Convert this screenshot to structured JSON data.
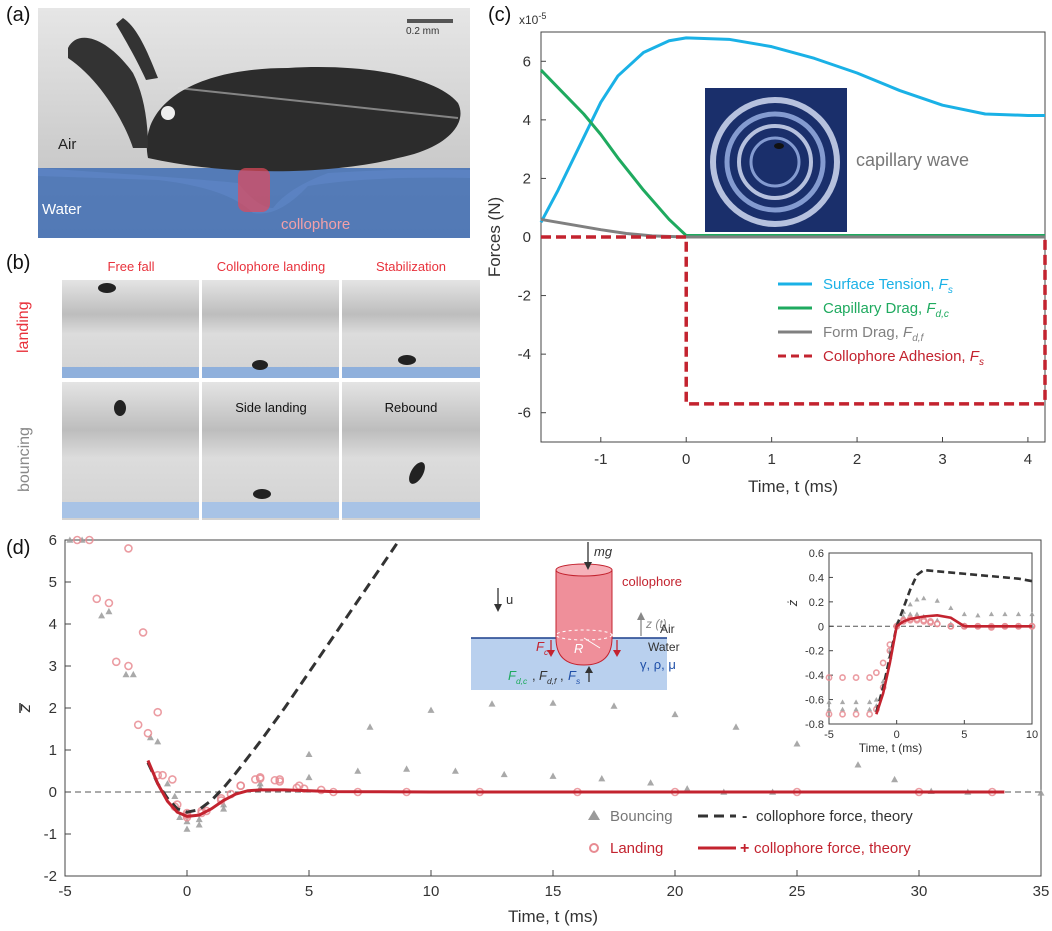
{
  "panel_labels": {
    "a": "(a)",
    "b": "(b)",
    "c": "(c)",
    "d": "(d)"
  },
  "panel_a": {
    "scale_bar": "0.2 mm",
    "air": "Air",
    "water": "Water",
    "collophore": "collophore"
  },
  "panel_b": {
    "top_captions": [
      "Free fall",
      "Collophore landing",
      "Stabilization"
    ],
    "bottom_captions": [
      "",
      "Side landing",
      "Rebound"
    ],
    "row_landing": "landing",
    "row_bouncing": "bouncing"
  },
  "colors": {
    "surface_tension": "#1ab1e6",
    "capillary_drag": "#1faa5f",
    "form_drag": "#808080",
    "adhesion": "#c3232f",
    "bouncing": "#9a9a9a",
    "landing": "#e88b92",
    "theory_dark": "#333333",
    "theory_red": "#c3232f"
  },
  "chart_data": [
    {
      "type": "line",
      "panel": "(c)",
      "multiplier_label": "x10",
      "multiplier_exp": "-5",
      "xlabel": "Time, t (ms)",
      "ylabel": "Forces (N)",
      "xlim": [
        -1.7,
        4.2
      ],
      "ylim": [
        -7,
        7
      ],
      "xticks": [
        -1,
        0,
        1,
        2,
        3,
        4
      ],
      "yticks": [
        -6,
        -4,
        -2,
        0,
        2,
        4,
        6
      ],
      "annotation": "capillary wave",
      "legend_position": "bottom-right",
      "series": [
        {
          "name": "Surface Tension, ",
          "italic": "F",
          "sub": "s",
          "style": "solid",
          "x": [
            -1.7,
            -1.5,
            -1.2,
            -1.0,
            -0.8,
            -0.5,
            -0.2,
            0.0,
            0.5,
            1.0,
            1.5,
            2.0,
            2.5,
            3.0,
            3.5,
            4.0,
            4.2
          ],
          "y": [
            0.5,
            1.6,
            3.4,
            4.6,
            5.5,
            6.3,
            6.7,
            6.8,
            6.75,
            6.5,
            6.1,
            5.6,
            5.0,
            4.5,
            4.2,
            4.15,
            4.15
          ]
        },
        {
          "name": "Capillary Drag, ",
          "italic": "F",
          "sub": "d,c",
          "style": "solid",
          "x": [
            -1.7,
            -1.5,
            -1.2,
            -1.0,
            -0.8,
            -0.5,
            -0.2,
            0.0,
            4.2
          ],
          "y": [
            5.7,
            5.1,
            4.2,
            3.5,
            2.7,
            1.6,
            0.6,
            0.05,
            0.05
          ]
        },
        {
          "name": "Form Drag, ",
          "italic": "F",
          "sub": "d,f",
          "style": "solid",
          "x": [
            -1.7,
            -1.4,
            -1.0,
            -0.7,
            -0.4,
            0.0,
            4.2
          ],
          "y": [
            0.6,
            0.45,
            0.25,
            0.12,
            0.04,
            0.0,
            0.0
          ]
        },
        {
          "name": "Collophore Adhesion, ",
          "italic": "F",
          "sub": "s",
          "style": "dashed",
          "x": [
            -1.7,
            0.0,
            0.0,
            4.2,
            4.2
          ],
          "y": [
            0.0,
            0.0,
            -5.7,
            -5.7,
            0.0
          ]
        }
      ]
    },
    {
      "type": "scatter",
      "panel": "(d)",
      "xlabel": "Time, t (ms)",
      "ylabel": "z",
      "ylabel_bar": true,
      "xlim": [
        -5,
        35
      ],
      "ylim": [
        -2,
        6
      ],
      "xticks": [
        -5,
        0,
        5,
        10,
        15,
        20,
        25,
        30,
        35
      ],
      "yticks": [
        -2,
        -1,
        0,
        1,
        2,
        3,
        4,
        5,
        6
      ],
      "legend_position": "bottom-center",
      "legend": [
        {
          "label": "Bouncing",
          "marker": "triangle"
        },
        {
          "label": "collophore force, theory",
          "sign": "-",
          "style": "dashed"
        },
        {
          "label": "Landing",
          "marker": "circle"
        },
        {
          "label": "collophore force, theory",
          "sign": "+",
          "style": "solid"
        }
      ],
      "series": [
        {
          "group": "Bouncing",
          "marker": "triangle",
          "x": [
            -4.8,
            -3.5,
            -2.5,
            -1.5,
            -0.8,
            -0.3,
            0.0,
            0.5,
            1.5,
            3,
            5,
            7.5,
            10,
            12.5,
            15,
            17.5,
            20,
            22.5,
            25,
            27.5,
            29,
            30.5,
            32,
            35
          ],
          "y": [
            6.0,
            4.2,
            2.8,
            1.3,
            0.2,
            -0.6,
            -0.88,
            -0.78,
            -0.4,
            0.2,
            0.9,
            1.55,
            1.95,
            2.1,
            2.12,
            2.05,
            1.85,
            1.55,
            1.15,
            0.65,
            0.3,
            0.02,
            0.0,
            -0.02
          ]
        },
        {
          "group": "Bouncing",
          "marker": "triangle",
          "x": [
            -4.3,
            -3.2,
            -2.2,
            -1.2,
            -0.5,
            0.0,
            0.5,
            1.5,
            3,
            5,
            7,
            9,
            11,
            13,
            15,
            17,
            19,
            20.5,
            22,
            24
          ],
          "y": [
            6.0,
            4.3,
            2.8,
            1.2,
            -0.1,
            -0.7,
            -0.65,
            -0.3,
            0.1,
            0.35,
            0.5,
            0.55,
            0.5,
            0.42,
            0.38,
            0.32,
            0.22,
            0.08,
            0.0,
            0.0
          ]
        },
        {
          "group": "Landing",
          "marker": "circle",
          "x": [
            -4.0,
            -3.2,
            -2.4,
            -1.6,
            -1.0,
            -0.4,
            0.0,
            0.6,
            1.4,
            2.2,
            3.0,
            3.8,
            4.6,
            5.5,
            7,
            9,
            12,
            16,
            20,
            25,
            30,
            33
          ],
          "y": [
            6.0,
            4.5,
            3.0,
            1.4,
            0.4,
            -0.3,
            -0.55,
            -0.45,
            -0.15,
            0.15,
            0.35,
            0.3,
            0.15,
            0.05,
            0.0,
            0.0,
            0.0,
            0.0,
            0.0,
            0.0,
            0.0,
            0.0
          ]
        },
        {
          "group": "Landing",
          "marker": "circle",
          "x": [
            -2.4,
            -1.8,
            -1.2,
            -0.6,
            0.0,
            0.6,
            1.4,
            2.2,
            3.0,
            3.8,
            4.8,
            6
          ],
          "y": [
            5.8,
            3.8,
            1.9,
            0.3,
            -0.5,
            -0.5,
            -0.2,
            0.15,
            0.32,
            0.25,
            0.08,
            0.0
          ]
        },
        {
          "group": "Landing",
          "marker": "circle",
          "x": [
            -4.5,
            -3.7,
            -2.9,
            -2.0,
            -1.2,
            -0.5,
            0.0,
            0.8,
            1.8,
            2.8,
            3.6,
            4.5
          ],
          "y": [
            6.0,
            4.6,
            3.1,
            1.6,
            0.4,
            -0.35,
            -0.6,
            -0.45,
            -0.05,
            0.3,
            0.28,
            0.1
          ]
        },
        {
          "group": "collophore force, theory",
          "sign": "-",
          "style": "dashed",
          "x": [
            -1.6,
            -1.2,
            -0.8,
            -0.4,
            0.0,
            0.5,
            1.0,
            1.5,
            2.0,
            3.0,
            4.0,
            5.0,
            6.0,
            7.0,
            8.0,
            8.7
          ],
          "y": [
            0.7,
            0.2,
            -0.15,
            -0.4,
            -0.48,
            -0.42,
            -0.2,
            0.1,
            0.45,
            1.2,
            2.0,
            2.85,
            3.7,
            4.55,
            5.4,
            6.0
          ]
        },
        {
          "group": "collophore force, theory",
          "sign": "+",
          "style": "solid",
          "x": [
            -1.6,
            -1.2,
            -0.8,
            -0.4,
            0.0,
            0.5,
            1.0,
            1.5,
            2.0,
            2.5,
            3.0,
            4.0,
            5.0,
            6.0,
            10.0,
            20.0,
            30.0,
            33.5
          ],
          "y": [
            0.75,
            0.2,
            -0.22,
            -0.48,
            -0.58,
            -0.55,
            -0.4,
            -0.2,
            -0.05,
            0.03,
            0.05,
            0.05,
            0.03,
            0.01,
            0.0,
            0.0,
            0.0,
            0.0
          ]
        }
      ],
      "inset_diagram": {
        "labels": [
          "mg",
          "collophore",
          "u",
          "z (t)",
          "Air",
          "Water",
          "R",
          "γ, ρ, μ"
        ],
        "force_F": "F",
        "sub_c": "c",
        "sub_dc": "d,c",
        "sub_df": "d,f",
        "sub_s": "s",
        "comma": ","
      },
      "inset": {
        "type": "scatter",
        "xlabel": "Time, t (ms)",
        "ylabel": "ż",
        "xlim": [
          -5,
          10
        ],
        "ylim": [
          -0.8,
          0.6
        ],
        "xticks": [
          -5,
          0,
          5,
          10
        ],
        "yticks": [
          -0.8,
          -0.6,
          -0.4,
          -0.2,
          0,
          0.2,
          0.4,
          0.6
        ],
        "series": [
          {
            "group": "Bouncing",
            "marker": "triangle",
            "x": [
              -5,
              -4,
              -3,
              -2,
              -1.5,
              -1,
              -0.5,
              0,
              0.5,
              1,
              1.5,
              2,
              3,
              4,
              5,
              6,
              7,
              8,
              9,
              10
            ],
            "y": [
              -0.62,
              -0.62,
              -0.62,
              -0.62,
              -0.6,
              -0.45,
              -0.2,
              0.02,
              0.12,
              0.18,
              0.22,
              0.23,
              0.21,
              0.15,
              0.1,
              0.09,
              0.1,
              0.1,
              0.1,
              0.1
            ]
          },
          {
            "group": "Bouncing",
            "marker": "triangle",
            "x": [
              -5,
              -4,
              -3,
              -2,
              -1.5,
              -1,
              -0.5,
              0,
              0.5,
              1,
              1.5,
              2,
              3,
              4,
              5,
              6,
              7,
              8,
              9,
              10
            ],
            "y": [
              -0.68,
              -0.68,
              -0.68,
              -0.68,
              -0.65,
              -0.5,
              -0.25,
              0.0,
              0.08,
              0.1,
              0.1,
              0.08,
              0.05,
              0.02,
              0.01,
              0.0,
              0.0,
              0.0,
              0.0,
              0.0
            ]
          },
          {
            "group": "Landing",
            "marker": "circle",
            "x": [
              -5,
              -4,
              -3,
              -2,
              -1.5,
              -1,
              -0.5,
              0,
              0.5,
              1,
              1.5,
              2,
              2.5,
              3,
              4,
              5,
              6,
              7,
              8,
              9,
              10
            ],
            "y": [
              -0.42,
              -0.42,
              -0.42,
              -0.42,
              -0.38,
              -0.3,
              -0.15,
              0.0,
              0.05,
              0.06,
              0.05,
              0.04,
              0.03,
              0.02,
              0.0,
              0.0,
              0.0,
              -0.01,
              0.0,
              0.0,
              0.0
            ]
          },
          {
            "group": "Landing",
            "marker": "circle",
            "x": [
              -5,
              -4,
              -3,
              -2,
              -1.5,
              -1,
              -0.5,
              0,
              0.5,
              1,
              1.5,
              2,
              2.5,
              3,
              4,
              5,
              6,
              7,
              8,
              9,
              10
            ],
            "y": [
              -0.72,
              -0.72,
              -0.72,
              -0.72,
              -0.68,
              -0.5,
              -0.2,
              0.0,
              0.04,
              0.05,
              0.06,
              0.05,
              0.04,
              0.02,
              0.0,
              0.0,
              0.0,
              0.0,
              0.0,
              0.0,
              0.0
            ]
          },
          {
            "group": "collophore force, theory",
            "sign": "-",
            "style": "dashed",
            "x": [
              -1.5,
              -1,
              -0.5,
              0,
              0.5,
              1,
              1.5,
              2,
              3,
              4,
              5,
              6,
              7,
              8,
              9,
              10
            ],
            "y": [
              -0.7,
              -0.5,
              -0.25,
              0.0,
              0.15,
              0.3,
              0.42,
              0.46,
              0.45,
              0.44,
              0.43,
              0.42,
              0.41,
              0.4,
              0.39,
              0.37
            ]
          },
          {
            "group": "collophore force, theory",
            "sign": "+",
            "style": "solid",
            "x": [
              -1.5,
              -1,
              -0.5,
              0,
              0.5,
              1,
              1.5,
              2,
              3,
              4,
              5,
              6,
              10
            ],
            "y": [
              -0.72,
              -0.55,
              -0.3,
              0.0,
              0.04,
              0.06,
              0.07,
              0.08,
              0.09,
              0.07,
              0.0,
              0.0,
              0.0
            ]
          }
        ]
      }
    }
  ]
}
